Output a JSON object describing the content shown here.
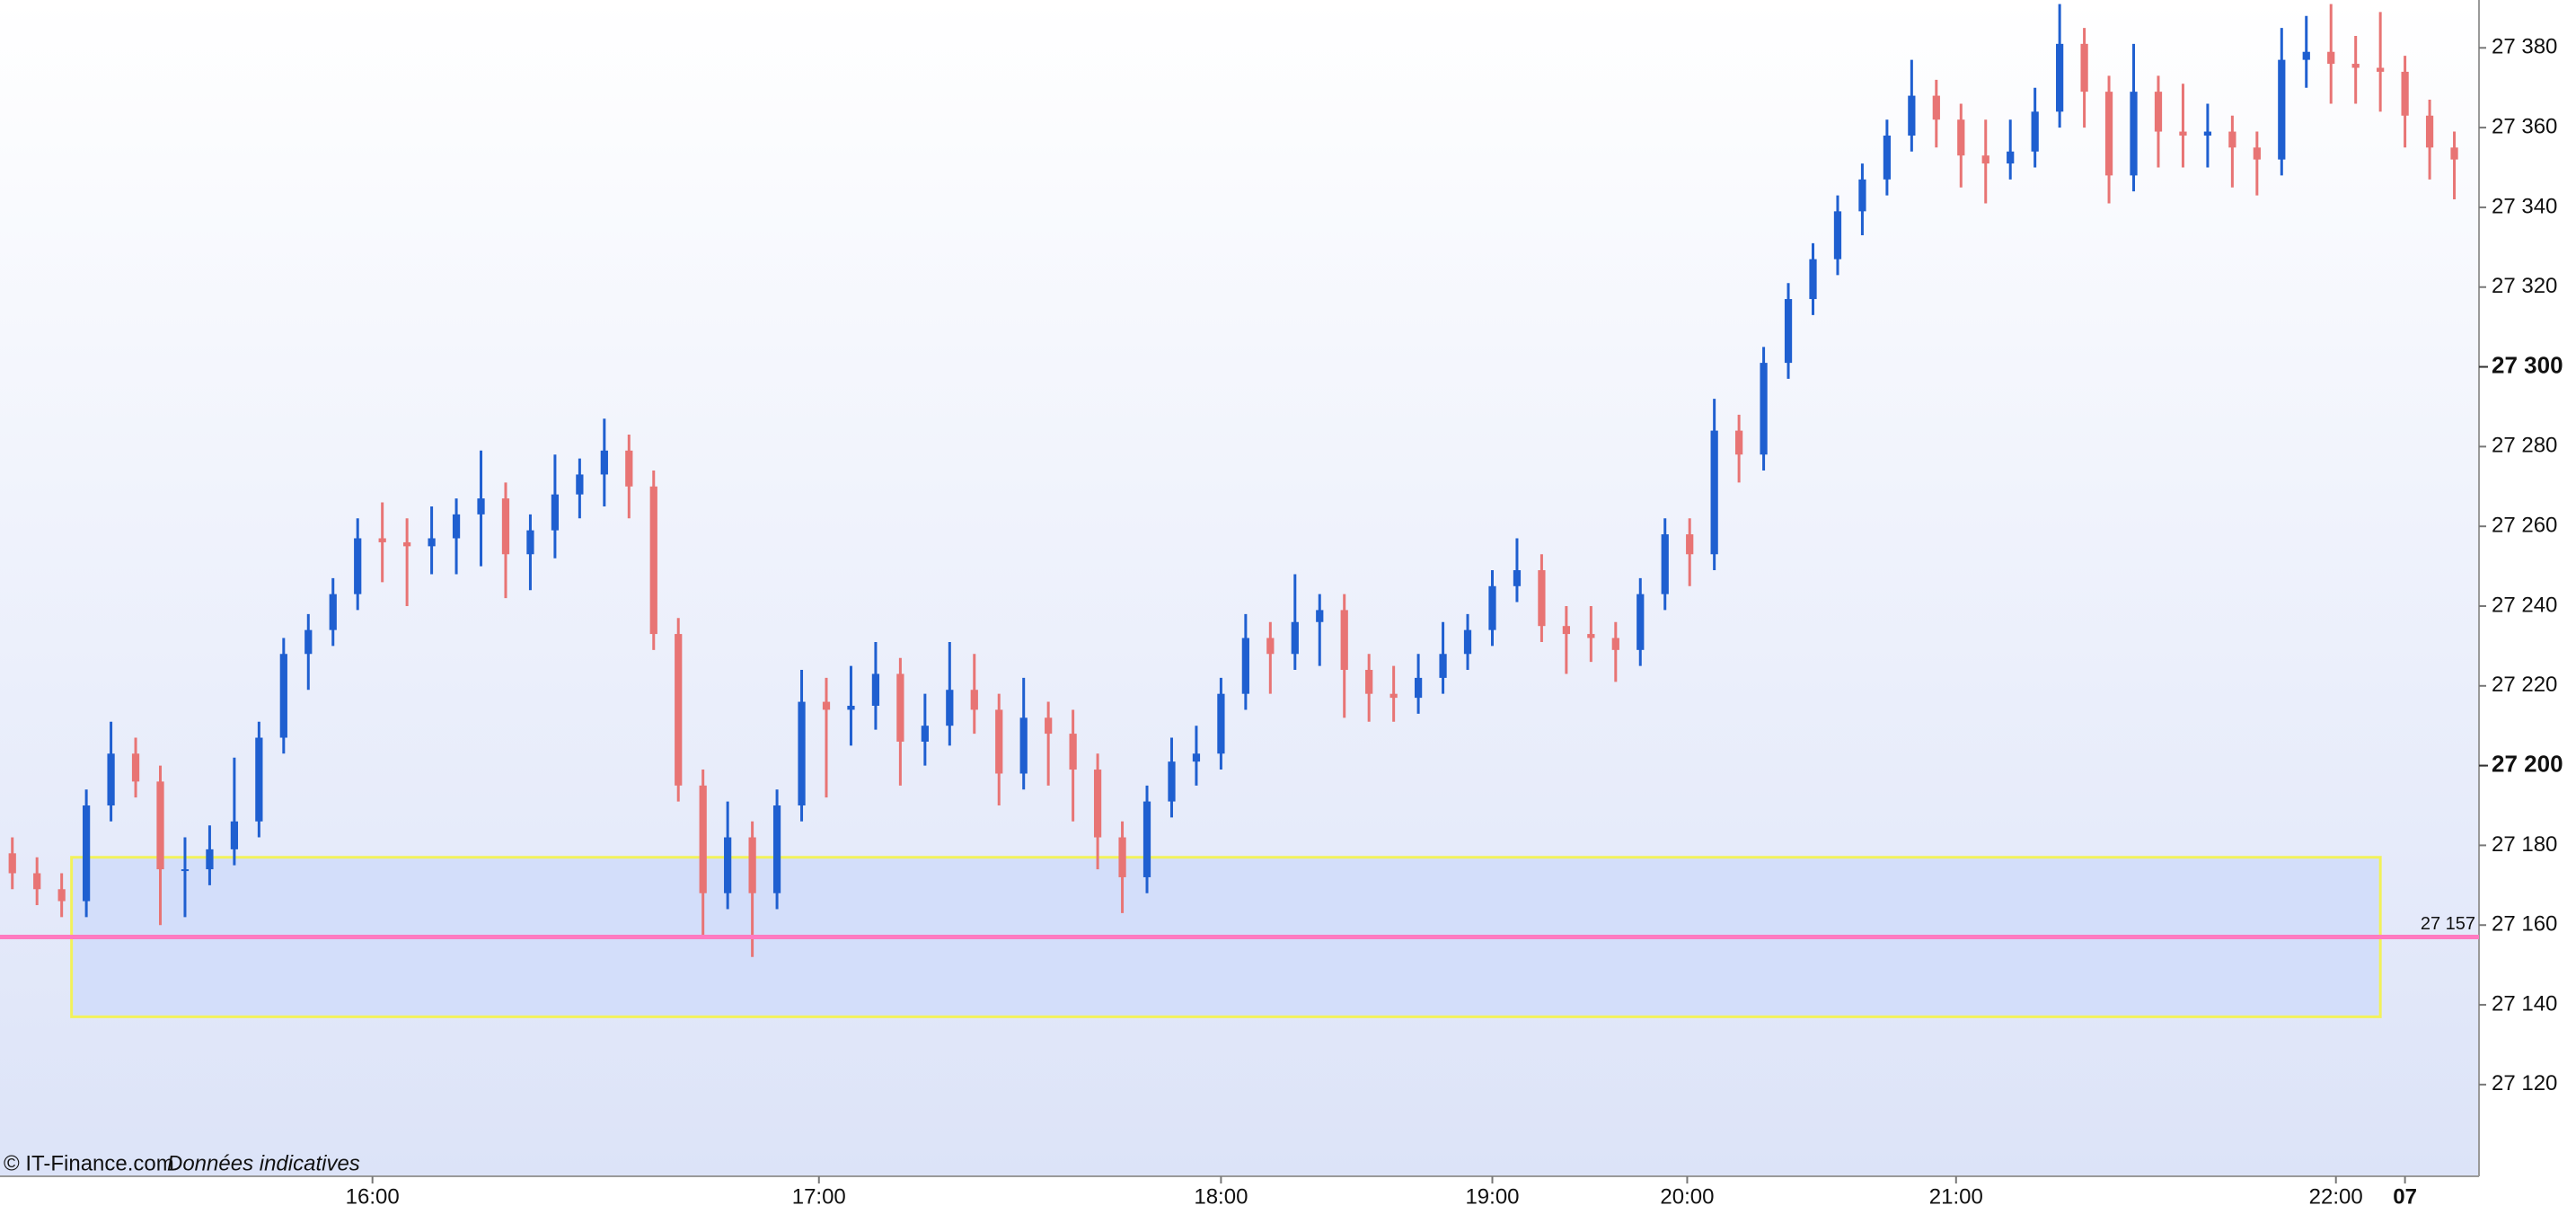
{
  "chart_data": {
    "type": "candlestick",
    "up_color": "#1f5fd0",
    "down_color": "#e87474",
    "open": [
      27178,
      27173,
      27169,
      27166,
      27190,
      27203,
      27196,
      27174,
      27174,
      27179,
      27186,
      27207,
      27228,
      27234,
      27243,
      27257,
      27256,
      27255,
      27257,
      27263,
      27267,
      27253,
      27259,
      27268,
      27273,
      27279,
      27270,
      27233,
      27195,
      27168,
      27182,
      27168,
      27190,
      27216,
      27214,
      27215,
      27223,
      27206,
      27210,
      27219,
      27214,
      27198,
      27212,
      27208,
      27199,
      27182,
      27172,
      27191,
      27201,
      27203,
      27218,
      27232,
      27228,
      27236,
      27239,
      27224,
      27218,
      27217,
      27222,
      27228,
      27234,
      27245,
      27249,
      27235,
      27233,
      27232,
      27229,
      27243,
      27258,
      27253,
      27284,
      27278,
      27301,
      27317,
      27327,
      27339,
      27347,
      27358,
      27368,
      27362,
      27353,
      27351,
      27354,
      27364,
      27381,
      27369,
      27348,
      27369,
      27359,
      27358,
      27359,
      27355,
      27352,
      27377,
      27379,
      27376,
      27375,
      27374,
      27363,
      27355
    ],
    "high": [
      27182,
      27177,
      27173,
      27194,
      27211,
      27207,
      27200,
      27182,
      27185,
      27202,
      27211,
      27232,
      27238,
      27247,
      27262,
      27266,
      27262,
      27265,
      27267,
      27279,
      27271,
      27263,
      27278,
      27277,
      27287,
      27283,
      27274,
      27237,
      27199,
      27191,
      27186,
      27194,
      27224,
      27222,
      27225,
      27231,
      27227,
      27218,
      27231,
      27228,
      27218,
      27222,
      27216,
      27214,
      27203,
      27186,
      27195,
      27207,
      27210,
      27222,
      27238,
      27236,
      27248,
      27243,
      27243,
      27228,
      27225,
      27228,
      27236,
      27238,
      27249,
      27257,
      27253,
      27240,
      27240,
      27236,
      27247,
      27262,
      27262,
      27292,
      27288,
      27305,
      27321,
      27331,
      27343,
      27351,
      27362,
      27377,
      27372,
      27366,
      27362,
      27362,
      27370,
      27391,
      27385,
      27373,
      27381,
      27373,
      27371,
      27366,
      27363,
      27359,
      27385,
      27388,
      27391,
      27383,
      27389,
      27378,
      27367,
      27359
    ],
    "low": [
      27169,
      27165,
      27162,
      27162,
      27186,
      27192,
      27160,
      27162,
      27170,
      27175,
      27182,
      27203,
      27219,
      27230,
      27239,
      27246,
      27240,
      27248,
      27248,
      27250,
      27242,
      27244,
      27252,
      27262,
      27265,
      27262,
      27229,
      27191,
      27157,
      27164,
      27152,
      27164,
      27186,
      27192,
      27205,
      27209,
      27195,
      27200,
      27205,
      27208,
      27190,
      27194,
      27195,
      27186,
      27174,
      27163,
      27168,
      27187,
      27195,
      27199,
      27214,
      27218,
      27224,
      27225,
      27212,
      27211,
      27211,
      27213,
      27218,
      27224,
      27230,
      27241,
      27231,
      27223,
      27226,
      27221,
      27225,
      27239,
      27245,
      27249,
      27271,
      27274,
      27297,
      27313,
      27323,
      27333,
      27343,
      27354,
      27355,
      27345,
      27341,
      27347,
      27350,
      27360,
      27360,
      27341,
      27344,
      27350,
      27350,
      27350,
      27345,
      27343,
      27348,
      27370,
      27366,
      27366,
      27364,
      27355,
      27347,
      27342
    ],
    "close": [
      27173,
      27169,
      27166,
      27190,
      27203,
      27196,
      27174,
      27174,
      27179,
      27186,
      27207,
      27228,
      27234,
      27243,
      27257,
      27256,
      27255,
      27257,
      27263,
      27267,
      27253,
      27259,
      27268,
      27273,
      27279,
      27270,
      27233,
      27195,
      27168,
      27182,
      27168,
      27190,
      27216,
      27214,
      27215,
      27223,
      27206,
      27210,
      27219,
      27214,
      27198,
      27212,
      27208,
      27199,
      27182,
      27172,
      27191,
      27201,
      27203,
      27218,
      27232,
      27228,
      27236,
      27239,
      27224,
      27218,
      27217,
      27222,
      27228,
      27234,
      27245,
      27249,
      27235,
      27233,
      27232,
      27229,
      27243,
      27258,
      27253,
      27284,
      27278,
      27301,
      27317,
      27327,
      27339,
      27347,
      27358,
      27368,
      27362,
      27353,
      27351,
      27354,
      27364,
      27381,
      27369,
      27348,
      27369,
      27359,
      27358,
      27359,
      27355,
      27352,
      27377,
      27379,
      27376,
      27375,
      27374,
      27363,
      27355,
      27352
    ],
    "xlim": [
      -0.5,
      100
    ],
    "xticks": [
      {
        "value": 14.6,
        "label": "16:00"
      },
      {
        "value": 32.7,
        "label": "17:00"
      },
      {
        "value": 49.0,
        "label": "18:00"
      },
      {
        "value": 60.0,
        "label": "19:00"
      },
      {
        "value": 67.9,
        "label": "20:00"
      },
      {
        "value": 78.8,
        "label": "21:00"
      },
      {
        "value": 94.2,
        "label": "22:00"
      },
      {
        "value": 97.0,
        "label": "07"
      }
    ],
    "ylim": [
      27097,
      27392
    ],
    "yticks": [
      {
        "value": 27120,
        "label": "27 120"
      },
      {
        "value": 27140,
        "label": "27 140"
      },
      {
        "value": 27160,
        "label": "27 160"
      },
      {
        "value": 27180,
        "label": "27 180"
      },
      {
        "value": 27200,
        "label": "27 200"
      },
      {
        "value": 27220,
        "label": "27 220"
      },
      {
        "value": 27240,
        "label": "27 240"
      },
      {
        "value": 27260,
        "label": "27 260"
      },
      {
        "value": 27280,
        "label": "27 280"
      },
      {
        "value": 27300,
        "label": "27 300"
      },
      {
        "value": 27320,
        "label": "27 320"
      },
      {
        "value": 27340,
        "label": "27 340"
      },
      {
        "value": 27360,
        "label": "27 360"
      },
      {
        "value": 27380,
        "label": "27 380"
      }
    ],
    "bold_yticks": [
      27200,
      27300
    ],
    "reference_line": {
      "value": 27157,
      "label": "27 157",
      "color": "#ff7ac0"
    },
    "zone": {
      "x": [
        2.4,
        96.0
      ],
      "y": [
        27137,
        27177
      ],
      "fill": "#d3defa",
      "stroke": "#f2f25a"
    },
    "source": "© IT-Finance.com",
    "note": "Données indicatives"
  }
}
